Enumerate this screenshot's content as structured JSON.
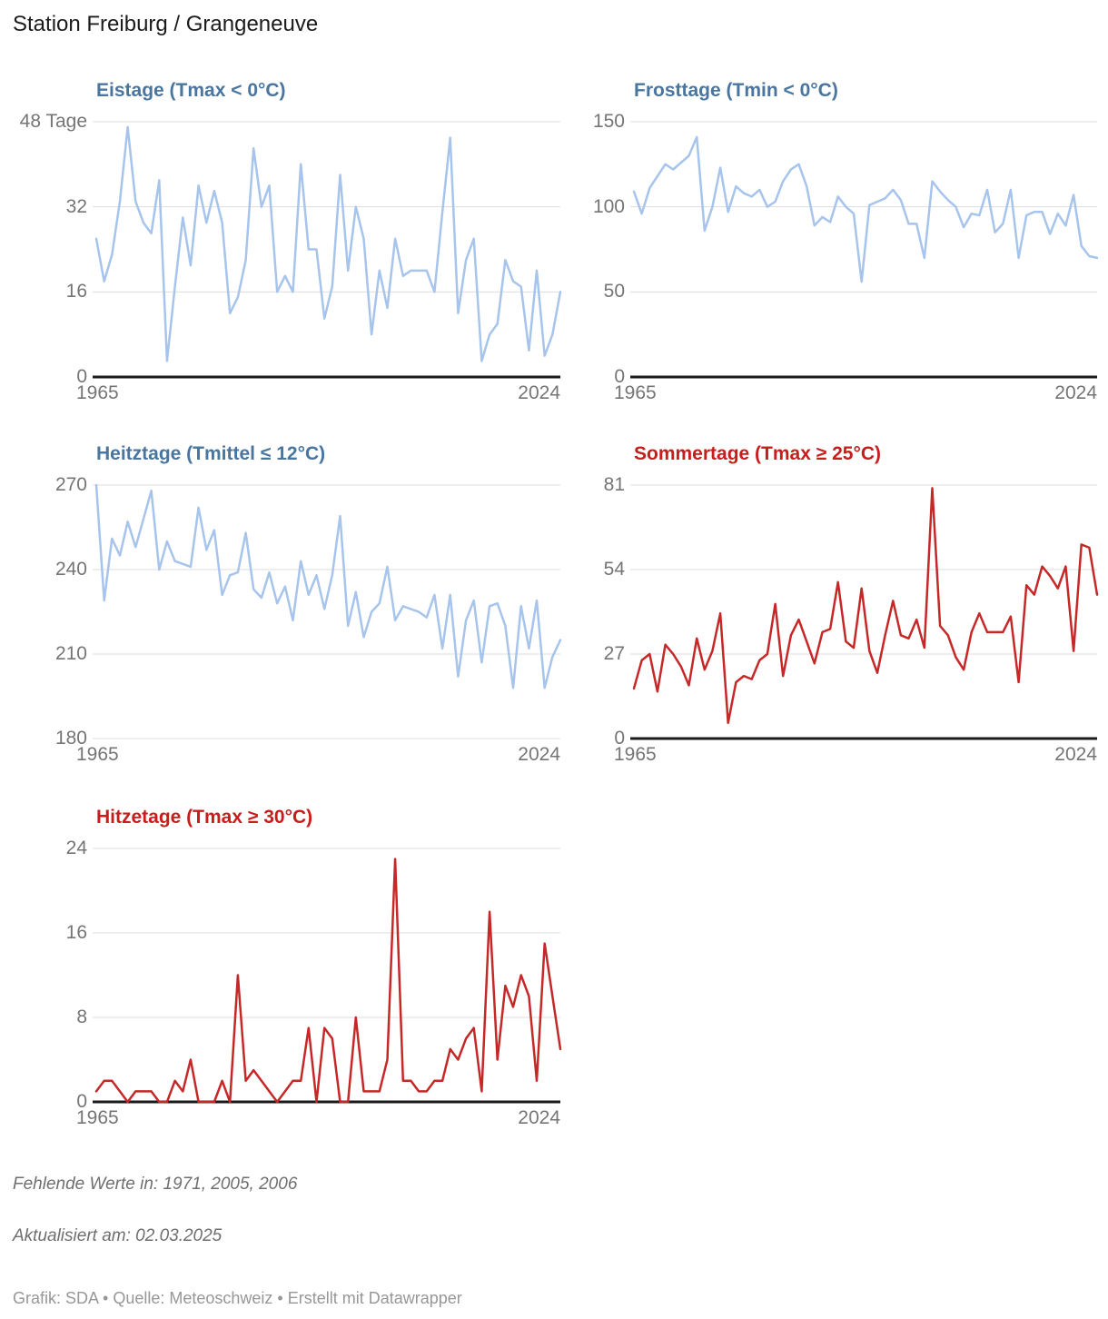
{
  "page": {
    "title": "Station Freiburg / Grangeneuve"
  },
  "footer": {
    "missing": "Fehlende Werte in: 1971, 2005, 2006",
    "updated": "Aktualisiert am: 02.03.2025",
    "credit": "Grafik: SDA • Quelle: Meteoschweiz • Erstellt mit Datawrapper"
  },
  "colors": {
    "blue_line": "#a6c4ec",
    "blue_title": "#49759f",
    "red_line": "#c62828",
    "red_title": "#c71e1d",
    "grid": "#dddddd",
    "axis": "#1a1a1a",
    "tick_label": "#757575"
  },
  "chart_data": {
    "type": "line",
    "x_start": 1965,
    "x_end": 2024,
    "x_ticks": [
      "1965",
      "2024"
    ],
    "missing_years": [
      1971,
      2005,
      2006
    ],
    "grid": "horizontal-only",
    "legend": "none",
    "charts": [
      {
        "id": "eistage",
        "title": "Eistage (Tmax < 0°C)",
        "title_color": "#49759f",
        "line_color": "#a6c4ec",
        "y_min": 0,
        "y_max": 48,
        "zero_axis": true,
        "y_ticks": [
          "48 Tage",
          "32",
          "16",
          "0"
        ],
        "values": [
          26,
          18,
          23,
          33,
          47,
          33,
          29,
          27,
          37,
          3,
          17,
          30,
          21,
          36,
          29,
          35,
          29,
          12,
          15,
          22,
          43,
          32,
          36,
          16,
          19,
          16,
          40,
          24,
          24,
          11,
          17,
          38,
          20,
          32,
          26,
          8,
          20,
          13,
          26,
          19,
          20,
          20,
          20,
          16,
          31,
          45,
          12,
          22,
          26,
          3,
          8,
          10,
          22,
          18,
          17,
          5,
          20,
          4,
          8,
          16
        ]
      },
      {
        "id": "frosttage",
        "title": "Frosttage (Tmin < 0°C)",
        "title_color": "#49759f",
        "line_color": "#a6c4ec",
        "y_min": 0,
        "y_max": 150,
        "zero_axis": true,
        "y_ticks": [
          "150",
          "100",
          "50",
          "0"
        ],
        "values": [
          109,
          96,
          111,
          118,
          125,
          122,
          126,
          130,
          141,
          86,
          100,
          123,
          97,
          112,
          108,
          106,
          110,
          100,
          103,
          115,
          122,
          125,
          112,
          89,
          94,
          91,
          106,
          100,
          96,
          56,
          101,
          103,
          105,
          110,
          104,
          90,
          90,
          70,
          115,
          109,
          104,
          100,
          88,
          96,
          95,
          110,
          85,
          90,
          110,
          70,
          95,
          97,
          97,
          84,
          96,
          89,
          107,
          77,
          71,
          70
        ]
      },
      {
        "id": "heitztage",
        "title": "Heitztage (Tmittel ≤ 12°C)",
        "title_color": "#49759f",
        "line_color": "#a6c4ec",
        "y_min": 180,
        "y_max": 270,
        "zero_axis": false,
        "y_ticks": [
          "270",
          "240",
          "210",
          "180"
        ],
        "values": [
          270,
          229,
          251,
          245,
          257,
          248,
          258,
          268,
          240,
          250,
          243,
          242,
          241,
          262,
          247,
          254,
          231,
          238,
          239,
          253,
          233,
          230,
          239,
          228,
          234,
          222,
          243,
          231,
          238,
          226,
          238,
          259,
          220,
          232,
          216,
          225,
          228,
          241,
          222,
          227,
          226,
          225,
          223,
          231,
          212,
          231,
          202,
          222,
          229,
          207,
          227,
          228,
          220,
          198,
          227,
          212,
          229,
          198,
          209,
          215
        ]
      },
      {
        "id": "sommertage",
        "title": "Sommertage (Tmax ≥ 25°C)",
        "title_color": "#c71e1d",
        "line_color": "#c62828",
        "y_min": 0,
        "y_max": 81,
        "zero_axis": true,
        "y_ticks": [
          "81",
          "54",
          "27",
          "0"
        ],
        "values": [
          16,
          25,
          27,
          15,
          30,
          27,
          23,
          17,
          32,
          22,
          28,
          40,
          5,
          18,
          20,
          19,
          25,
          27,
          43,
          20,
          33,
          38,
          31,
          24,
          34,
          35,
          50,
          31,
          29,
          48,
          28,
          21,
          33,
          44,
          33,
          32,
          38,
          29,
          80,
          36,
          33,
          26,
          22,
          34,
          40,
          34,
          34,
          34,
          39,
          18,
          49,
          46,
          55,
          52,
          48,
          55,
          28,
          62,
          61,
          46
        ]
      },
      {
        "id": "hitzetage",
        "title": "Hitzetage (Tmax ≥ 30°C)",
        "title_color": "#c71e1d",
        "line_color": "#c62828",
        "y_min": 0,
        "y_max": 24,
        "zero_axis": true,
        "y_ticks": [
          "24",
          "16",
          "8",
          "0"
        ],
        "values": [
          1,
          2,
          2,
          1,
          0,
          1,
          1,
          1,
          0,
          0,
          2,
          1,
          4,
          0,
          0,
          0,
          2,
          0,
          12,
          2,
          3,
          2,
          1,
          0,
          1,
          2,
          2,
          7,
          0,
          7,
          6,
          0,
          0,
          8,
          1,
          1,
          1,
          4,
          23,
          2,
          2,
          1,
          1,
          2,
          2,
          5,
          4,
          6,
          7,
          1,
          18,
          4,
          11,
          9,
          12,
          10,
          2,
          15,
          10,
          5
        ]
      }
    ]
  }
}
